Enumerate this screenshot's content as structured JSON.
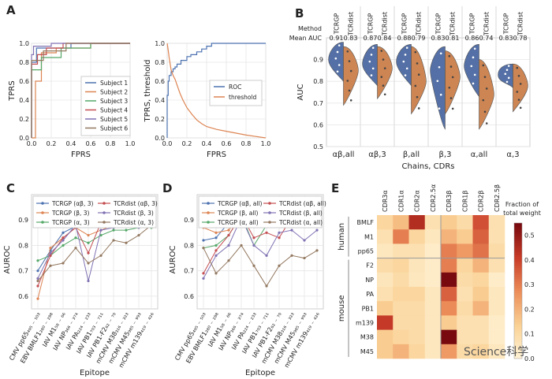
{
  "panel_letters": {
    "A": "A",
    "B": "B",
    "C": "C",
    "D": "D",
    "E": "E"
  },
  "colors": {
    "blue": "#4c72b0",
    "orange": "#dd8452",
    "green": "#55a868",
    "red": "#c44e52",
    "purple": "#8172b3",
    "brown": "#937860",
    "violin_blue": "#5470a6",
    "violin_orange": "#cd8553"
  },
  "watermark": "Science科学",
  "chart_data": [
    {
      "id": "A1",
      "type": "line",
      "xlabel": "FPRS",
      "ylabel": "TPRS",
      "xlim": [
        0,
        1
      ],
      "ylim": [
        0,
        1
      ],
      "ticks": [
        "0.0",
        "0.2",
        "0.4",
        "0.6",
        "0.8",
        "1.0"
      ],
      "series": [
        {
          "name": "Subject 1",
          "color": "#4c72b0",
          "points": [
            [
              0,
              0
            ],
            [
              0,
              0.8
            ],
            [
              0.05,
              0.8
            ],
            [
              0.05,
              0.95
            ],
            [
              0.4,
              0.95
            ],
            [
              0.4,
              1
            ],
            [
              1,
              1
            ]
          ]
        },
        {
          "name": "Subject 2",
          "color": "#dd8452",
          "points": [
            [
              0,
              0
            ],
            [
              0.04,
              0
            ],
            [
              0.04,
              0.6
            ],
            [
              0.1,
              0.6
            ],
            [
              0.1,
              0.9
            ],
            [
              0.25,
              0.9
            ],
            [
              0.25,
              0.95
            ],
            [
              0.6,
              0.95
            ],
            [
              0.6,
              1
            ],
            [
              1,
              1
            ]
          ]
        },
        {
          "name": "Subject 3",
          "color": "#55a868",
          "points": [
            [
              0,
              0
            ],
            [
              0,
              0.72
            ],
            [
              0.1,
              0.72
            ],
            [
              0.1,
              0.85
            ],
            [
              0.3,
              0.85
            ],
            [
              0.3,
              0.95
            ],
            [
              0.6,
              0.95
            ],
            [
              0.6,
              1
            ],
            [
              1,
              1
            ]
          ]
        },
        {
          "name": "Subject 4",
          "color": "#c44e52",
          "points": [
            [
              0,
              0
            ],
            [
              0,
              0.78
            ],
            [
              0.06,
              0.78
            ],
            [
              0.06,
              0.88
            ],
            [
              0.15,
              0.88
            ],
            [
              0.15,
              0.95
            ],
            [
              0.32,
              0.95
            ],
            [
              0.32,
              1
            ],
            [
              1,
              1
            ]
          ]
        },
        {
          "name": "Subject 5",
          "color": "#8172b3",
          "points": [
            [
              0,
              0
            ],
            [
              0,
              0.88
            ],
            [
              0.02,
              0.88
            ],
            [
              0.02,
              0.97
            ],
            [
              0.2,
              0.97
            ],
            [
              0.2,
              1
            ],
            [
              1,
              1
            ]
          ]
        },
        {
          "name": "Subject 6",
          "color": "#937860",
          "points": [
            [
              0,
              0
            ],
            [
              0,
              0.82
            ],
            [
              0.12,
              0.82
            ],
            [
              0.12,
              0.92
            ],
            [
              0.35,
              0.92
            ],
            [
              0.35,
              1
            ],
            [
              1,
              1
            ]
          ]
        }
      ]
    },
    {
      "id": "A2",
      "type": "line",
      "xlabel": "FPRS",
      "ylabel": "TPRS, threshold",
      "xlim": [
        0,
        1
      ],
      "ylim": [
        0,
        1
      ],
      "ticks": [
        "0.0",
        "0.2",
        "0.4",
        "0.6",
        "0.8",
        "1.0"
      ],
      "series": [
        {
          "name": "ROC",
          "color": "#4c72b0",
          "points": [
            [
              0,
              0
            ],
            [
              0,
              0.45
            ],
            [
              0.01,
              0.45
            ],
            [
              0.01,
              0.6
            ],
            [
              0.02,
              0.6
            ],
            [
              0.02,
              0.66
            ],
            [
              0.04,
              0.66
            ],
            [
              0.04,
              0.7
            ],
            [
              0.06,
              0.7
            ],
            [
              0.06,
              0.73
            ],
            [
              0.08,
              0.73
            ],
            [
              0.08,
              0.75
            ],
            [
              0.1,
              0.75
            ],
            [
              0.1,
              0.78
            ],
            [
              0.14,
              0.78
            ],
            [
              0.14,
              0.82
            ],
            [
              0.2,
              0.82
            ],
            [
              0.2,
              0.86
            ],
            [
              0.24,
              0.86
            ],
            [
              0.24,
              0.88
            ],
            [
              0.3,
              0.88
            ],
            [
              0.3,
              0.91
            ],
            [
              0.35,
              0.91
            ],
            [
              0.35,
              0.94
            ],
            [
              0.4,
              0.94
            ],
            [
              0.4,
              0.97
            ],
            [
              0.45,
              0.97
            ],
            [
              0.45,
              1
            ],
            [
              1,
              1
            ]
          ]
        },
        {
          "name": "threshold",
          "color": "#dd8452",
          "points": [
            [
              0,
              1
            ],
            [
              0.01,
              0.93
            ],
            [
              0.02,
              0.85
            ],
            [
              0.03,
              0.78
            ],
            [
              0.04,
              0.72
            ],
            [
              0.06,
              0.66
            ],
            [
              0.08,
              0.62
            ],
            [
              0.1,
              0.56
            ],
            [
              0.13,
              0.47
            ],
            [
              0.16,
              0.4
            ],
            [
              0.2,
              0.32
            ],
            [
              0.25,
              0.25
            ],
            [
              0.3,
              0.19
            ],
            [
              0.35,
              0.15
            ],
            [
              0.4,
              0.12
            ],
            [
              0.5,
              0.09
            ],
            [
              0.6,
              0.07
            ],
            [
              0.7,
              0.05
            ],
            [
              0.8,
              0.03
            ],
            [
              0.9,
              0.015
            ],
            [
              1,
              0
            ]
          ]
        }
      ]
    },
    {
      "id": "B",
      "type": "violin",
      "xlabel": "Chains, CDRs",
      "ylabel": "AUC",
      "ylim": [
        0.5,
        1.0
      ],
      "yticks": [
        "0.5",
        "0.6",
        "0.7",
        "0.8",
        "0.9"
      ],
      "ytick_values": [
        0.5,
        0.6,
        0.7,
        0.8,
        0.9
      ],
      "method_label": "Method",
      "mean_auc_label": "Mean AUC",
      "methods": [
        "TCRGP",
        "TCRdist"
      ],
      "categories": [
        "αβ,all",
        "αβ,3",
        "β,all",
        "β,3",
        "α,all",
        "α,3"
      ],
      "mean_auc": [
        [
          "0.91",
          "0.83"
        ],
        [
          "0.87",
          "0.84"
        ],
        [
          "0.88",
          "0.79"
        ],
        [
          "0.83",
          "0.81"
        ],
        [
          "0.86",
          "0.74"
        ],
        [
          "0.83",
          "0.78"
        ]
      ],
      "ranges": [
        [
          [
            0.8,
            0.98
          ],
          [
            0.69,
            0.96
          ]
        ],
        [
          [
            0.78,
            0.97
          ],
          [
            0.72,
            0.96
          ]
        ],
        [
          [
            0.78,
            0.97
          ],
          [
            0.65,
            0.96
          ]
        ],
        [
          [
            0.58,
            0.96
          ],
          [
            0.65,
            0.94
          ]
        ],
        [
          [
            0.73,
            0.97
          ],
          [
            0.58,
            0.9
          ]
        ],
        [
          [
            0.77,
            0.88
          ],
          [
            0.66,
            0.88
          ]
        ]
      ],
      "medians": [
        [
          0.9,
          0.85
        ],
        [
          0.88,
          0.86
        ],
        [
          0.89,
          0.8
        ],
        [
          0.85,
          0.82
        ],
        [
          0.87,
          0.74
        ],
        [
          0.83,
          0.78
        ]
      ]
    },
    {
      "id": "C",
      "type": "line",
      "xlabel": "Epitope",
      "ylabel": "AUROC",
      "ylim": [
        0.55,
        1.0
      ],
      "yticks": [
        "0.6",
        "0.7",
        "0.8",
        "0.9"
      ],
      "ytick_values": [
        0.6,
        0.7,
        0.8,
        0.9
      ],
      "categories": [
        "CMV pp65₄₉₅ ₋ ₅₀₃",
        "EBV BMLF1₂₈₀ ₋ ₂₈₈",
        "IAV M1₅₈ ₋ ₆₆",
        "IAV NP₃₆₆ ₋ ₃₇₄",
        "IAV PA₂₂₄ ₋ ₂₃₃",
        "IAV PB1₇₀₃ ₋ ₇₁₁",
        "IAV PB1-F2₆₂ ₋ ₇₀",
        "mCMV M38₃₁₆ ₋ ₃₂₃",
        "mCMV M45₉₈₅ ₋ ₉₉₃",
        "mCMV m139₄₁₉ ₋ ₄₂₆"
      ],
      "series": [
        {
          "name": "TCRGP (αβ, 3)",
          "color": "#4c72b0",
          "values": [
            0.7,
            0.78,
            0.85,
            0.875,
            0.88,
            0.91,
            0.92,
            0.92,
            0.93,
            0.95
          ]
        },
        {
          "name": "TCRGP (β, 3)",
          "color": "#dd8452",
          "values": [
            0.59,
            0.79,
            0.83,
            0.87,
            0.84,
            0.86,
            0.88,
            0.91,
            0.92,
            0.92
          ]
        },
        {
          "name": "TCRGP (α, 3)",
          "color": "#55a868",
          "values": [
            0.74,
            0.76,
            0.8,
            0.83,
            0.81,
            0.84,
            0.86,
            0.86,
            0.87,
            0.87
          ]
        },
        {
          "name": "TCRdist (αβ, 3)",
          "color": "#c44e52",
          "values": [
            0.64,
            0.76,
            0.83,
            0.87,
            0.77,
            0.89,
            0.91,
            0.91,
            0.9,
            0.94
          ]
        },
        {
          "name": "TCRdist (β, 3)",
          "color": "#8172b3",
          "values": [
            0.67,
            0.77,
            0.82,
            0.88,
            0.66,
            0.86,
            0.87,
            0.9,
            0.87,
            0.92
          ]
        },
        {
          "name": "TCRdist (α, 3)",
          "color": "#937860",
          "values": [
            0.66,
            0.72,
            0.73,
            0.79,
            0.73,
            0.76,
            0.82,
            0.81,
            0.84,
            0.88
          ]
        }
      ]
    },
    {
      "id": "D",
      "type": "line",
      "xlabel": "Epitope",
      "ylabel": "AUROC",
      "ylim": [
        0.55,
        1.0
      ],
      "yticks": [
        "0.6",
        "0.7",
        "0.8",
        "0.9"
      ],
      "ytick_values": [
        0.6,
        0.7,
        0.8,
        0.9
      ],
      "categories": [
        "CMV pp65₄₉₅ ₋ ₅₀₃",
        "EBV BMLF1₂₈₀ ₋ ₂₈₈",
        "IAV M1₅₈ ₋ ₆₆",
        "IAV NP₃₆₆ ₋ ₃₇₄",
        "IAV PA₂₂₄ ₋ ₂₃₃",
        "IAV PB1₇₀₃ ₋ ₇₁₁",
        "IAV PB1-F2₆₂ ₋ ₇₀",
        "mCMV M38₃₁₆ ₋ ₃₂₃",
        "mCMV M45₉₈₅ ₋ ₉₉₃",
        "mCMV m139₄₁₉ ₋ ₄₂₆"
      ],
      "series": [
        {
          "name": "TCRGP (αβ, all)",
          "color": "#4c72b0",
          "values": [
            0.82,
            0.83,
            0.89,
            0.9,
            0.93,
            0.94,
            0.95,
            0.96,
            0.97,
            0.98
          ]
        },
        {
          "name": "TCRGP (β, all)",
          "color": "#dd8452",
          "values": [
            0.87,
            0.85,
            0.86,
            0.92,
            0.92,
            0.9,
            0.93,
            0.94,
            0.95,
            0.96
          ]
        },
        {
          "name": "TCRGP (α, all)",
          "color": "#55a868",
          "values": [
            0.79,
            0.8,
            0.84,
            0.92,
            0.8,
            0.88,
            0.88,
            0.92,
            0.9,
            0.91
          ]
        },
        {
          "name": "TCRdist (αβ, all)",
          "color": "#c44e52",
          "values": [
            0.69,
            0.78,
            0.84,
            0.92,
            0.83,
            0.85,
            0.83,
            0.91,
            0.91,
            0.96
          ]
        },
        {
          "name": "TCRdist (β, all)",
          "color": "#8172b3",
          "values": [
            0.67,
            0.76,
            0.8,
            0.91,
            0.8,
            0.76,
            0.85,
            0.86,
            0.82,
            0.86
          ]
        },
        {
          "name": "TCRdist (α, all)",
          "color": "#937860",
          "values": [
            0.79,
            0.69,
            0.74,
            0.8,
            0.72,
            0.64,
            0.72,
            0.76,
            0.75,
            0.78
          ]
        }
      ]
    },
    {
      "id": "E",
      "type": "heatmap",
      "columns": [
        "CDR3α",
        "CDR1α",
        "CDR2α",
        "CDR2.5α",
        "CDR3β",
        "CDR1β",
        "CDR2β",
        "CDR2.5β"
      ],
      "row_groups": [
        {
          "name": "human",
          "rows": [
            "BMLF",
            "M1",
            "pp65"
          ]
        },
        {
          "name": "mouse",
          "rows": [
            "F2",
            "NP",
            "PA",
            "PB1",
            "m139",
            "M38",
            "M45"
          ]
        }
      ],
      "rows": [
        "BMLF",
        "M1",
        "pp65",
        "F2",
        "NP",
        "PA",
        "PB1",
        "m139",
        "M38",
        "M45"
      ],
      "values": [
        [
          0.12,
          0.18,
          0.45,
          0.08,
          0.15,
          0.1,
          0.38,
          0.08
        ],
        [
          0.08,
          0.3,
          0.12,
          0.05,
          0.2,
          0.15,
          0.35,
          0.08
        ],
        [
          0.05,
          0.08,
          0.08,
          0.03,
          0.3,
          0.25,
          0.32,
          0.1
        ],
        [
          0.1,
          0.12,
          0.06,
          0.03,
          0.3,
          0.12,
          0.2,
          0.08
        ],
        [
          0.06,
          0.1,
          0.05,
          0.03,
          0.55,
          0.1,
          0.12,
          0.03
        ],
        [
          0.08,
          0.12,
          0.12,
          0.05,
          0.35,
          0.08,
          0.15,
          0.05
        ],
        [
          0.15,
          0.1,
          0.1,
          0.05,
          0.28,
          0.1,
          0.2,
          0.05
        ],
        [
          0.42,
          0.1,
          0.1,
          0.05,
          0.15,
          0.08,
          0.08,
          0.03
        ],
        [
          0.15,
          0.12,
          0.1,
          0.05,
          0.55,
          0.08,
          0.08,
          0.03
        ],
        [
          0.15,
          0.2,
          0.12,
          0.05,
          0.25,
          0.1,
          0.12,
          0.05
        ]
      ],
      "colorbar_label": "Fraction of total weight",
      "colorbar_ticks": [
        "0.0",
        "0.1",
        "0.2",
        "0.3",
        "0.4",
        "0.5"
      ],
      "colorbar_values": [
        0,
        0.1,
        0.2,
        0.3,
        0.4,
        0.5
      ],
      "vmax": 0.55
    }
  ]
}
